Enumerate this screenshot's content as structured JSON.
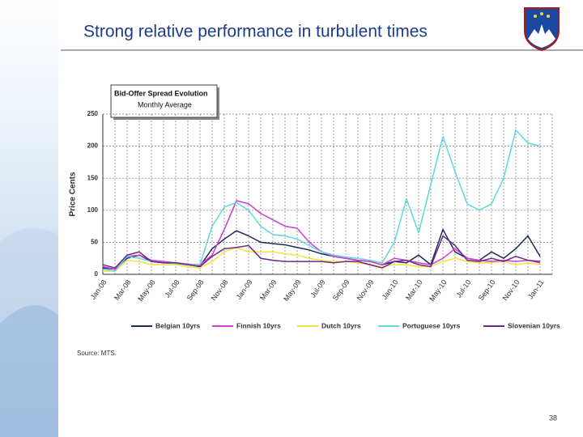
{
  "slide_title": "Strong relative performance in turbulent times",
  "source": "Source: MTS.",
  "page_number": "38",
  "chart_data": {
    "type": "line",
    "title": "Bid-Offer Spread Evolution",
    "subtitle": "Monthly Average",
    "y_label": "Price Cents",
    "categories": [
      "Jan-08",
      null,
      "Mar-08",
      null,
      "May-08",
      null,
      "Jul-08",
      null,
      "Sep-08",
      null,
      "Nov-08",
      null,
      "Jan-09",
      null,
      "Mar-09",
      null,
      "May-09",
      null,
      "Jul-09",
      null,
      "Sep-09",
      null,
      "Nov-09",
      null,
      "Jan-10",
      null,
      "Mar-10",
      null,
      "May-10",
      null,
      "Jul-10",
      null,
      "Sep-10",
      null,
      "Nov-10",
      null,
      "Jan-11"
    ],
    "ylim": [
      0,
      250
    ],
    "yticks": [
      0,
      50,
      100,
      150,
      200,
      250
    ],
    "grid": true,
    "legend": "bottom",
    "series": [
      {
        "name": "Belgian 10yrs",
        "color": "#1f2a5a",
        "values": [
          10,
          8,
          25,
          30,
          20,
          18,
          17,
          15,
          13,
          40,
          55,
          68,
          60,
          50,
          48,
          46,
          42,
          38,
          32,
          28,
          25,
          22,
          20,
          15,
          20,
          18,
          30,
          15,
          70,
          35,
          25,
          22,
          35,
          25,
          40,
          60,
          28
        ]
      },
      {
        "name": "Finnish 10yrs",
        "color": "#d63bd0",
        "values": [
          12,
          8,
          28,
          30,
          22,
          20,
          18,
          16,
          15,
          30,
          70,
          115,
          110,
          95,
          85,
          75,
          72,
          50,
          35,
          28,
          25,
          22,
          20,
          15,
          25,
          22,
          18,
          15,
          25,
          40,
          25,
          22,
          20,
          22,
          20,
          22,
          18
        ]
      },
      {
        "name": "Dutch 10yrs",
        "color": "#f2e43a",
        "values": [
          5,
          5,
          22,
          20,
          15,
          15,
          15,
          12,
          10,
          20,
          35,
          42,
          35,
          35,
          35,
          32,
          30,
          25,
          22,
          20,
          20,
          18,
          15,
          12,
          15,
          15,
          12,
          12,
          20,
          25,
          20,
          18,
          18,
          20,
          15,
          18,
          15
        ]
      },
      {
        "name": "Portuguese 10yrs",
        "color": "#5fd8e0",
        "values": [
          8,
          5,
          28,
          25,
          20,
          18,
          17,
          15,
          15,
          75,
          105,
          112,
          100,
          75,
          62,
          60,
          55,
          45,
          35,
          30,
          27,
          25,
          22,
          18,
          50,
          118,
          65,
          140,
          215,
          160,
          110,
          100,
          110,
          150,
          225,
          205,
          200
        ]
      },
      {
        "name": "Slovenian 10yrs",
        "color": "#6a2a8a",
        "values": [
          15,
          10,
          30,
          35,
          20,
          18,
          18,
          15,
          12,
          28,
          40,
          42,
          45,
          25,
          22,
          20,
          20,
          20,
          20,
          18,
          20,
          20,
          15,
          10,
          20,
          22,
          15,
          12,
          60,
          45,
          22,
          20,
          25,
          20,
          28,
          22,
          20
        ]
      }
    ]
  }
}
